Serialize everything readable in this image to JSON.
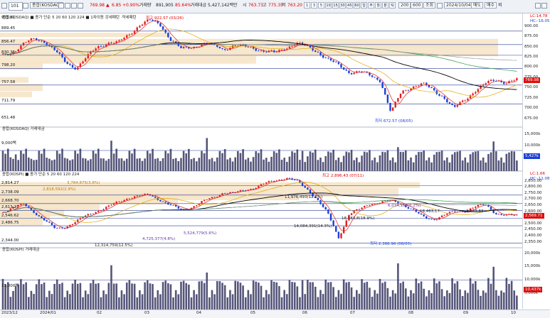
{
  "toolbar": {
    "symbol": "101",
    "index_name": "종합(KOSDAQ)",
    "price": "769.98",
    "change_arrow": "▲",
    "change": "6.85",
    "change_pct": "+0.90%",
    "volume_label": "거래량",
    "volume": "891,905",
    "volume_pct": "85.64%",
    "amount_label": "거래대금",
    "amount": "5,427,142백만",
    "open_label": "시",
    "open": "763.73",
    "high_label": "고",
    "high": "775.35",
    "low_label": "저",
    "low": "763.20",
    "period_buttons": [
      "1",
      "3",
      "5",
      "10",
      "15",
      "30",
      "45",
      "60",
      "일",
      "주",
      "월",
      "분",
      "틱"
    ],
    "count": "200",
    "total": "600",
    "query_label": "조회",
    "date": "2024/10/04",
    "sell_label": "매도",
    "buy_label": "매수",
    "net_label": "외"
  },
  "kosdaq_panel": {
    "title": "종합(KOSDAQ) ■ 종가 단순 5 20 60 120 224 ■ 1차이동 강세패턴 ·약세패턴",
    "left_labels": [
      "915.01",
      "889.45",
      "856.47",
      "830.35",
      "798.20",
      "757.58",
      "711.79",
      "651.48"
    ],
    "right_ticks": [
      "900.00",
      "875.00",
      "850.00",
      "825.00",
      "800.00",
      "775.00",
      "750.00",
      "725.00",
      "700.00",
      "675.00"
    ],
    "lc_label": "LC:14.78",
    "hc_label": "HC:-16.05",
    "current_badge": "769.98",
    "high_annotation": "최고 922.57 (03/26)",
    "low_annotation": "최저 672.57 (08/05)"
  },
  "kosdaq_volume_panel": {
    "title": "종합(KOSDAQ) 거래대금",
    "left_label": "9,000백",
    "right_ticks": [
      "15,000k",
      "10,000k",
      "5,000k"
    ],
    "current_badge": "5,427k"
  },
  "kospi_panel": {
    "title": "종합(KOSPI) ■ 종가 단순 5 20 60 120 224",
    "left_labels": [
      "2,814.27",
      "2,738.09",
      "2,668.70",
      "2,613.21",
      "2,546.62",
      "2,486.75",
      "2,344.00"
    ],
    "right_ticks": [
      "2,850.00",
      "2,800.00",
      "2,750.00",
      "2,700.00",
      "2,650.00",
      "2,600.00",
      "2,550.00",
      "2,500.00",
      "2,450.00",
      "2,400.00",
      "2,350.00"
    ],
    "lc_label": "LC:1.66",
    "hc_label": "HC:-11.08",
    "current_badge": "2,569.71",
    "high_annotation": "최고 2,896.43 (07/11)",
    "low_annotation": "최저 2,386.96 (08/05)",
    "volume_annotations": [
      "3,784,875(3.8%)",
      "2,818,592(2.9%)",
      "11,976,493(12.2%)",
      "6,034,188(6.2%)",
      "5,524,779(5.6%)",
      "4,725,377(4.8%)",
      "12,314,759(12.5%)",
      "14,084,391(14.3%)",
      "18,583,8(18.9%)",
      "18,463,17",
      "2,663,63"
    ]
  },
  "kospi_volume_panel": {
    "title": "종합(KOSPI) 거래대금",
    "left_label": "11,000백",
    "right_ticks": [
      "20,000k",
      "15,000k",
      "10,000k",
      "5,000k"
    ],
    "current_badge": "10,437k"
  },
  "x_axis": {
    "labels": [
      "2023/12",
      "2024/01",
      "02",
      "03",
      "04",
      "05",
      "06",
      "07",
      "08",
      "09",
      "10"
    ]
  },
  "colors": {
    "up": "#e02020",
    "down": "#1a3fd8",
    "ma5": "#e02020",
    "ma20": "#e0a800",
    "ma60": "#000000",
    "ma120": "#2a9a4a",
    "ma224": "#8a8a8a",
    "volume_bar": "#55557a",
    "profile": "#f5e3c4"
  }
}
